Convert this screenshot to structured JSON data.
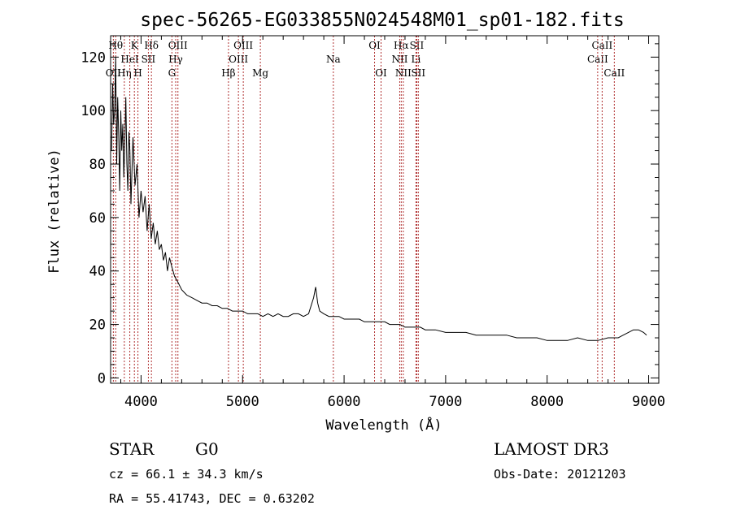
{
  "chart_data": {
    "type": "line",
    "title": "spec-56265-EG033855N024548M01_sp01-182.fits",
    "xlabel": "Wavelength (Å)",
    "ylabel": "Flux (relative)",
    "xlim": [
      3700,
      9100
    ],
    "ylim": [
      -2,
      128
    ],
    "x_ticks": [
      4000,
      5000,
      6000,
      7000,
      8000,
      9000
    ],
    "y_ticks": [
      0,
      20,
      40,
      60,
      80,
      100,
      120
    ],
    "grid": false,
    "series": [
      {
        "x": [
          3710,
          3720,
          3730,
          3740,
          3750,
          3760,
          3770,
          3780,
          3790,
          3800,
          3810,
          3820,
          3830,
          3840,
          3850,
          3860,
          3870,
          3880,
          3890,
          3900,
          3920,
          3940,
          3960,
          3980,
          4000,
          4020,
          4040,
          4060,
          4080,
          4100,
          4120,
          4140,
          4160,
          4180,
          4200,
          4220,
          4240,
          4260,
          4280,
          4300,
          4330,
          4360,
          4400,
          4450,
          4500,
          4550,
          4600,
          4650,
          4700,
          4750,
          4800,
          4850,
          4900,
          4950,
          5000,
          5050,
          5100,
          5150,
          5200,
          5250,
          5300,
          5350,
          5400,
          5450,
          5500,
          5550,
          5600,
          5650,
          5700,
          5720,
          5740,
          5760,
          5800,
          5850,
          5900,
          5950,
          6000,
          6050,
          6100,
          6150,
          6200,
          6250,
          6300,
          6350,
          6400,
          6450,
          6500,
          6550,
          6600,
          6650,
          6700,
          6750,
          6800,
          6900,
          7000,
          7100,
          7200,
          7300,
          7400,
          7500,
          7600,
          7700,
          7800,
          7900,
          8000,
          8100,
          8200,
          8300,
          8400,
          8500,
          8600,
          8700,
          8750,
          8800,
          8850,
          8900,
          8950,
          8980
        ],
        "y": [
          85,
          110,
          95,
          100,
          120,
          80,
          105,
          90,
          70,
          100,
          85,
          95,
          75,
          88,
          105,
          80,
          70,
          92,
          85,
          65,
          90,
          72,
          80,
          60,
          70,
          62,
          68,
          55,
          65,
          52,
          58,
          50,
          55,
          48,
          50,
          44,
          47,
          40,
          45,
          42,
          38,
          36,
          33,
          31,
          30,
          29,
          28,
          28,
          27,
          27,
          26,
          26,
          25,
          25,
          25,
          24,
          24,
          24,
          23,
          24,
          23,
          24,
          23,
          23,
          24,
          24,
          23,
          24,
          30,
          34,
          28,
          25,
          24,
          23,
          23,
          23,
          22,
          22,
          22,
          22,
          21,
          21,
          21,
          21,
          21,
          20,
          20,
          20,
          19,
          19,
          19,
          19,
          18,
          18,
          17,
          17,
          17,
          16,
          16,
          16,
          16,
          15,
          15,
          15,
          14,
          14,
          14,
          15,
          14,
          14,
          15,
          15,
          16,
          17,
          18,
          18,
          17,
          16
        ]
      }
    ],
    "line_markers": [
      {
        "label": "OII",
        "x": 3727,
        "row": 3
      },
      {
        "label": "Hθ",
        "x": 3750,
        "row": 1
      },
      {
        "label": "Hη",
        "x": 3835,
        "row": 3
      },
      {
        "label": "HeI",
        "x": 3889,
        "row": 2
      },
      {
        "label": "K",
        "x": 3934,
        "row": 1
      },
      {
        "label": "H",
        "x": 3969,
        "row": 3
      },
      {
        "label": "SII",
        "x": 4072,
        "row": 2
      },
      {
        "label": "Hδ",
        "x": 4102,
        "row": 1
      },
      {
        "label": "G",
        "x": 4304,
        "row": 3
      },
      {
        "label": "OIII",
        "x": 4363,
        "row": 1
      },
      {
        "label": "Hγ",
        "x": 4341,
        "row": 2
      },
      {
        "label": "Hβ",
        "x": 4861,
        "row": 3
      },
      {
        "label": "OIII",
        "x": 4959,
        "row": 2
      },
      {
        "label": "OIII",
        "x": 5007,
        "row": 1
      },
      {
        "label": "Mg",
        "x": 5175,
        "row": 3
      },
      {
        "label": "Na",
        "x": 5894,
        "row": 2
      },
      {
        "label": "OI",
        "x": 6300,
        "row": 1
      },
      {
        "label": "OI",
        "x": 6364,
        "row": 3
      },
      {
        "label": "NII",
        "x": 6548,
        "row": 2
      },
      {
        "label": "Hα",
        "x": 6563,
        "row": 1
      },
      {
        "label": "NII",
        "x": 6583,
        "row": 3
      },
      {
        "label": "Li",
        "x": 6708,
        "row": 2
      },
      {
        "label": "SII",
        "x": 6716,
        "row": 1
      },
      {
        "label": "SII",
        "x": 6731,
        "row": 3
      },
      {
        "label": "CaII",
        "x": 8498,
        "row": 2
      },
      {
        "label": "CaII",
        "x": 8542,
        "row": 1
      },
      {
        "label": "CaII",
        "x": 8662,
        "row": 3
      }
    ]
  },
  "info": {
    "class": "STAR",
    "subclass": "G0",
    "survey": "LAMOST DR3",
    "cz": "cz = 66.1 ± 34.3 km/s",
    "obs_date": "Obs-Date: 20121203",
    "coords": "RA =  55.41743, DEC =   0.63202"
  }
}
